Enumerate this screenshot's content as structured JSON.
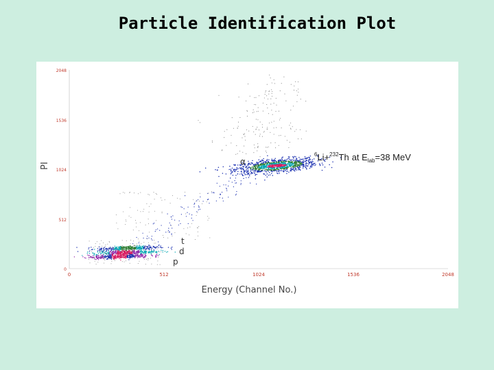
{
  "slide": {
    "title": "Particle Identification Plot"
  },
  "chart_data": {
    "type": "scatter",
    "title": "",
    "xlabel": "Energy (Channel No.)",
    "ylabel": "PI",
    "xlim": [
      0,
      2048
    ],
    "ylim": [
      0,
      2048
    ],
    "x_ticks": [
      "0",
      "512",
      "1024",
      "1536",
      "2048"
    ],
    "y_ticks": [
      "0",
      "512",
      "1024",
      "1536",
      "2048"
    ],
    "reaction": {
      "projectile_mass": "6",
      "projectile": "Li+",
      "target_mass": "232",
      "target": "Th",
      "energy_prefix": "at E",
      "energy_sub": "lab",
      "energy_value": "=38 MeV"
    },
    "particles": [
      {
        "label": "α",
        "energy_center": 1120,
        "pi_center": 1060
      },
      {
        "label": "t",
        "energy_center": 320,
        "pi_center": 210
      },
      {
        "label": "d",
        "energy_center": 300,
        "pi_center": 160
      },
      {
        "label": "p",
        "energy_center": 260,
        "pi_center": 110
      }
    ],
    "colors": [
      "#1a2fb0",
      "#2e7d32",
      "#00a6b2",
      "#d81b60",
      "#8e24aa",
      "#7b7b7b"
    ]
  }
}
